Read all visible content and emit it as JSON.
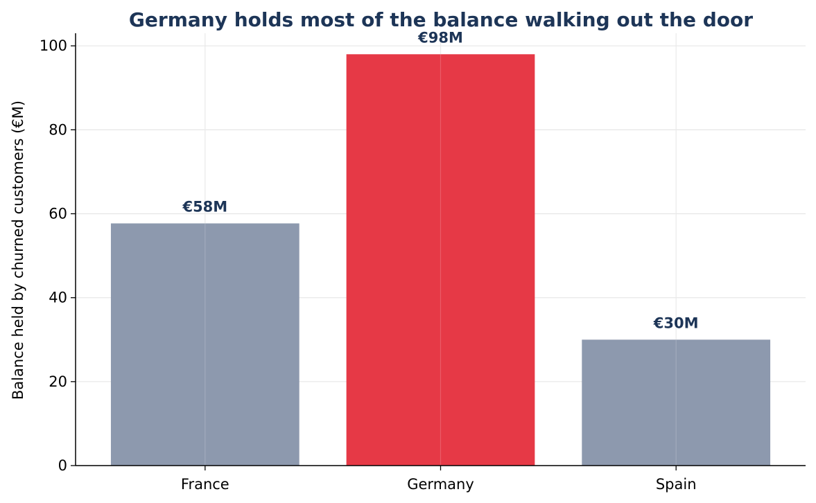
{
  "chart_data": {
    "type": "bar",
    "title": "Germany holds most of the balance walking out the door",
    "xlabel": "",
    "ylabel": "Balance held by churned customers (€M)",
    "categories": [
      "France",
      "Germany",
      "Spain"
    ],
    "values": [
      57.7,
      98.0,
      30.0
    ],
    "data_labels": [
      "€58M",
      "€98M",
      "€30M"
    ],
    "ylim": [
      0,
      103
    ],
    "yticks": [
      0,
      20,
      40,
      60,
      80,
      100
    ],
    "grid": true,
    "legend": "none",
    "colors": {
      "default_bar": "#8d99ae",
      "highlight_bar": "#e63946",
      "highlight_category": "Germany",
      "title": "#1d3557",
      "data_label": "#1d3557",
      "grid": "#e6e6e6",
      "axis": "#000000"
    }
  }
}
